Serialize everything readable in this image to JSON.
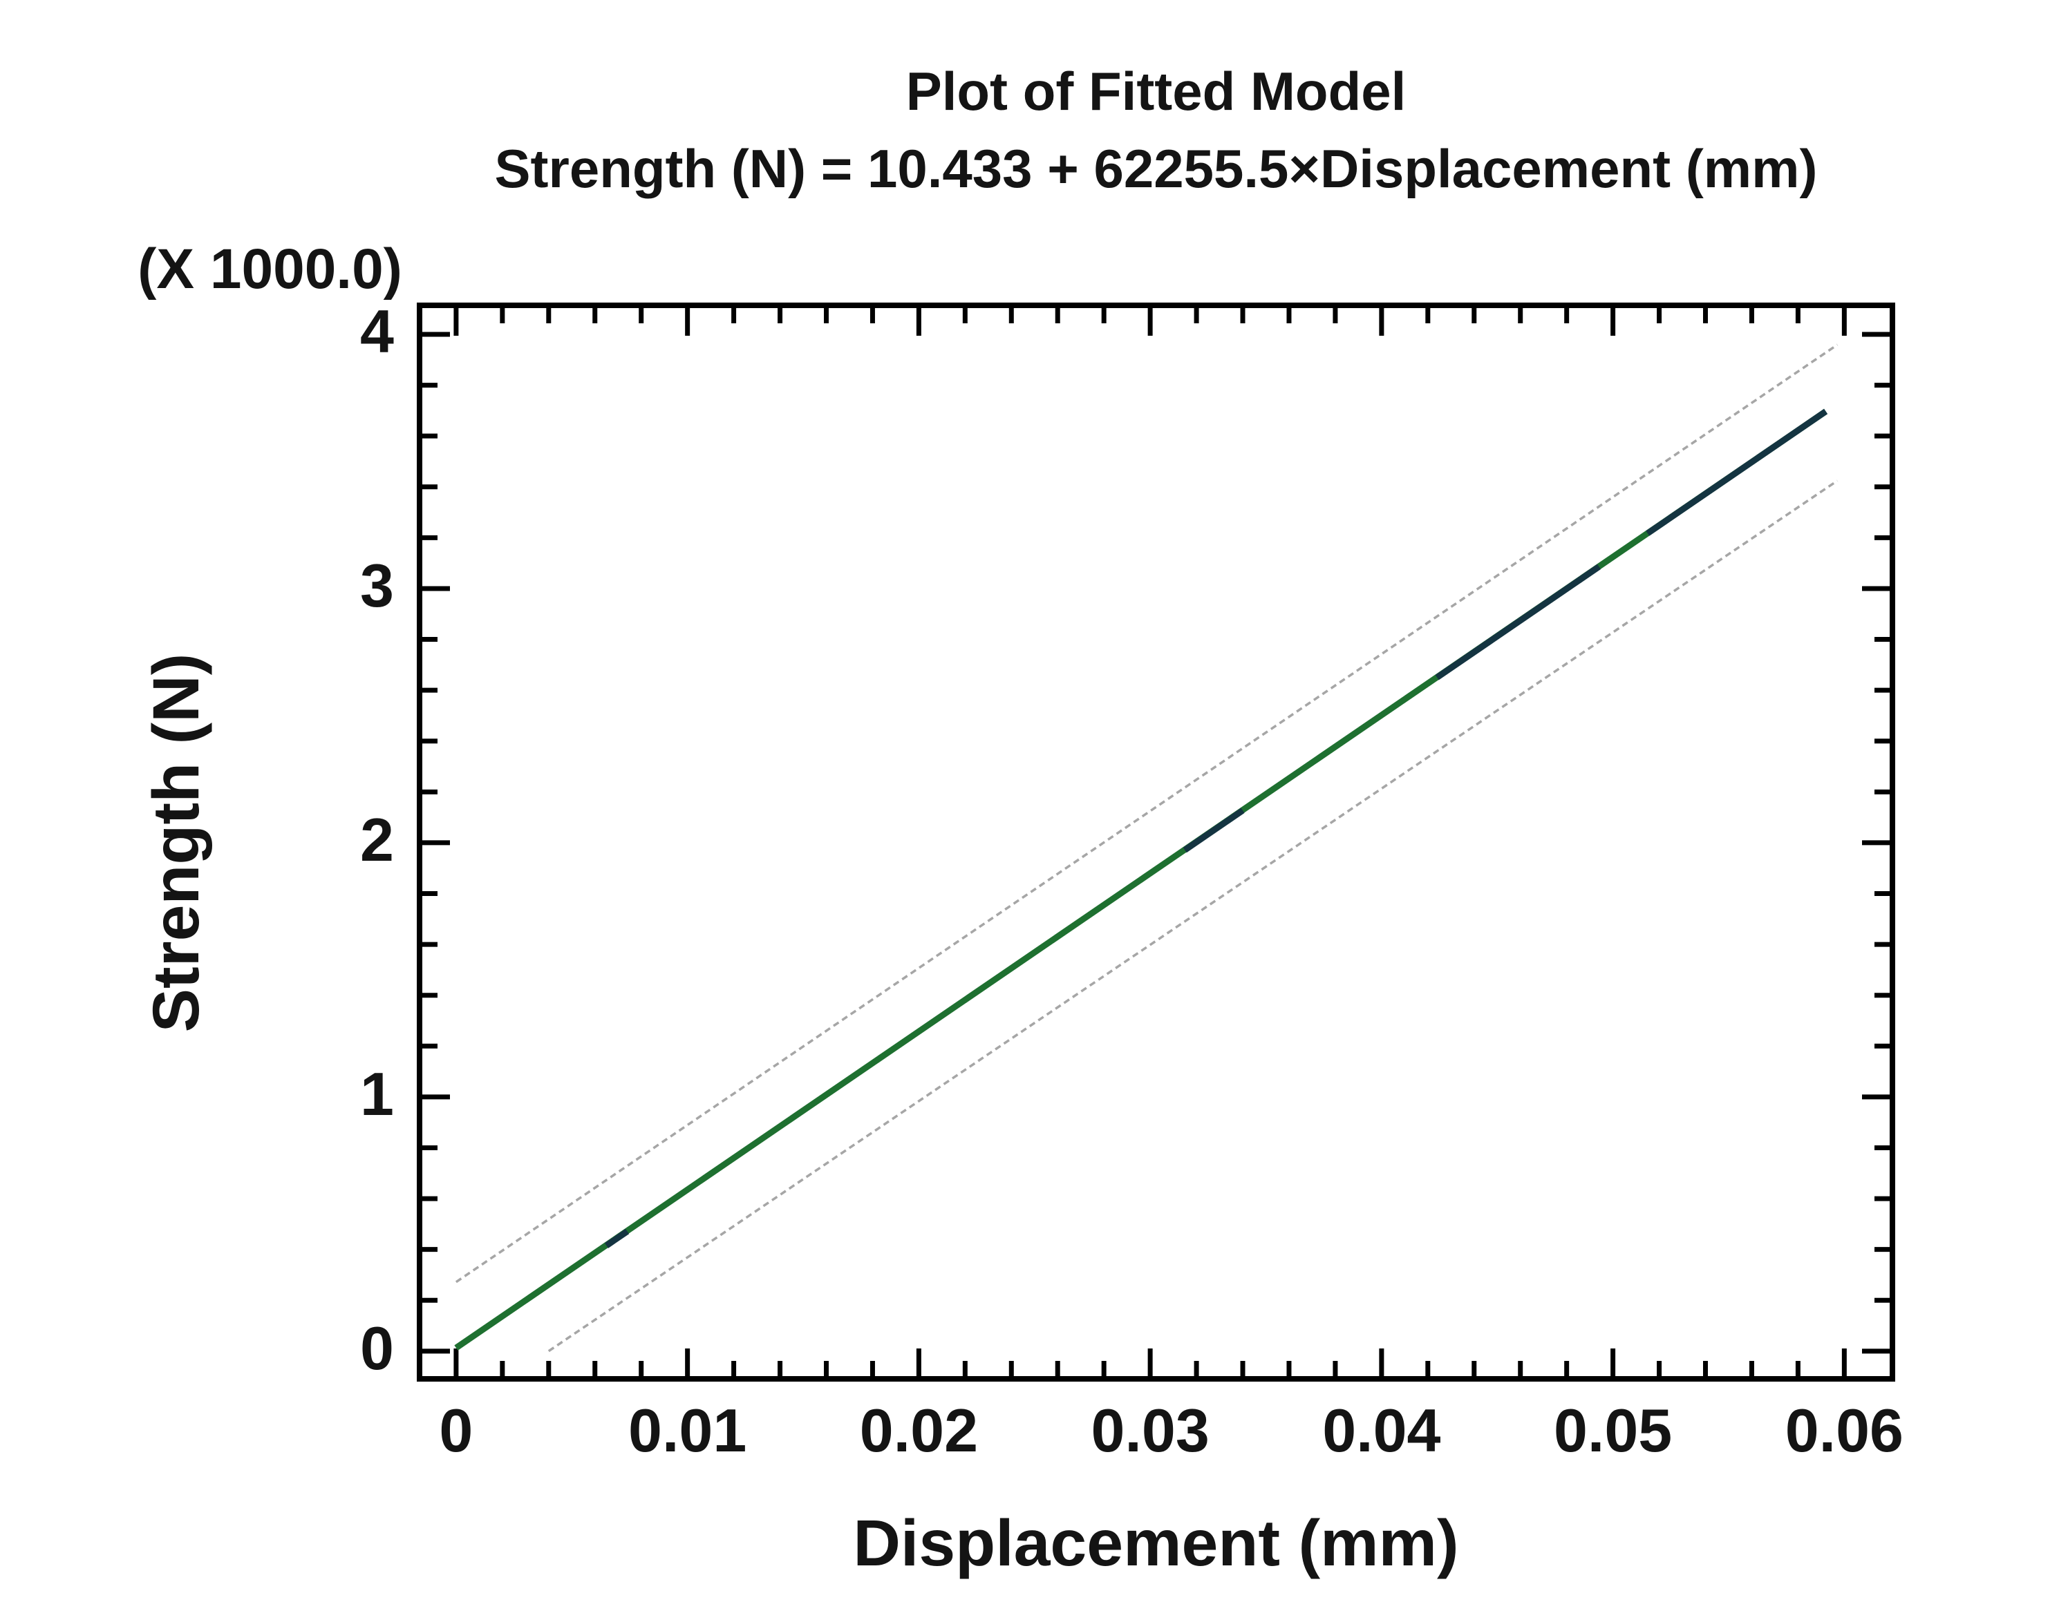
{
  "page": {
    "background_color": "#ffffff"
  },
  "chart_data": {
    "type": "line",
    "title": "Plot of Fitted Model",
    "subtitle": "Strength (N) = 10.433 + 62255.5×Displacement (mm)",
    "xlabel": "Displacement (mm)",
    "ylabel": "Strength (N)",
    "y_multiplier_label": "(X 1000.0)",
    "model": {
      "response": "Strength (N)",
      "predictor": "Displacement (mm)",
      "intercept": 10.433,
      "slope": 62255.5
    },
    "x_axis": {
      "range": [
        -0.0017,
        0.0622
      ],
      "major_ticks": [
        0,
        0.01,
        0.02,
        0.03,
        0.04,
        0.05,
        0.06
      ],
      "tick_labels": [
        "0",
        "0.01",
        "0.02",
        "0.03",
        "0.04",
        "0.05",
        "0.06"
      ],
      "minor_step": 0.002
    },
    "y_axis": {
      "range": [
        -0.12,
        4.125
      ],
      "major_ticks": [
        0,
        1,
        2,
        3,
        4
      ],
      "tick_labels": [
        "0",
        "1",
        "2",
        "3",
        "4"
      ],
      "minor_step": 0.2,
      "unit_multiplier": 1000
    },
    "grid": false,
    "legend": null,
    "frame_color": "#000000",
    "text_color": "#141414",
    "series": [
      {
        "name": "fitted-line",
        "color": "#1e7030",
        "width": 9,
        "dash": "",
        "segments": [
          [
            [
              0.0,
              0.013
            ],
            [
              0.0592,
              3.697
            ]
          ]
        ]
      },
      {
        "name": "observed-data-line",
        "color": "#143441",
        "width": 9,
        "dash": "",
        "segments": [
          [
            [
              0.0065,
              0.415
            ],
            [
              0.0074,
              0.471
            ]
          ],
          [
            [
              0.0315,
              1.971
            ],
            [
              0.034,
              2.127
            ]
          ],
          [
            [
              0.0424,
              2.65
            ],
            [
              0.0494,
              3.086
            ]
          ],
          [
            [
              0.0515,
              3.217
            ],
            [
              0.0592,
              3.697
            ]
          ]
        ]
      },
      {
        "name": "upper-confidence-limit",
        "color": "#a6a6a6",
        "width": 3.5,
        "dash": "9 6",
        "segments": [
          [
            [
              0.0,
              0.272
            ],
            [
              0.0597,
              3.959
            ]
          ]
        ]
      },
      {
        "name": "lower-confidence-limit",
        "color": "#a6a6a6",
        "width": 3.5,
        "dash": "9 6",
        "segments": [
          [
            [
              0.004,
              0.0
            ],
            [
              0.0597,
              3.424
            ]
          ]
        ]
      }
    ]
  }
}
